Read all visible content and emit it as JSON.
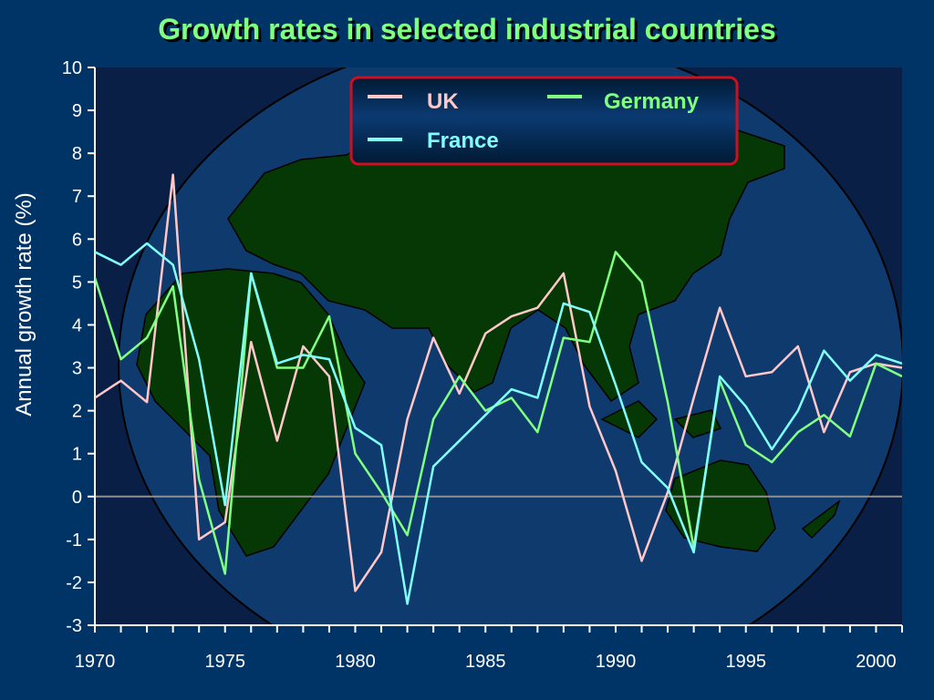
{
  "chart_data": {
    "type": "line",
    "title": "Growth rates in selected industrial countries",
    "xlabel": "",
    "ylabel": "Annual growth rate (%)",
    "xlim": [
      1970,
      2001
    ],
    "ylim": [
      -3,
      10
    ],
    "x_ticks": [
      1970,
      1975,
      1980,
      1985,
      1990,
      1995,
      2000
    ],
    "y_ticks": [
      -3,
      -2,
      -1,
      0,
      1,
      2,
      3,
      4,
      5,
      6,
      7,
      8,
      9,
      10
    ],
    "grid": false,
    "legend_position": "top-center",
    "x": [
      1970,
      1971,
      1972,
      1973,
      1974,
      1975,
      1976,
      1977,
      1978,
      1979,
      1980,
      1981,
      1982,
      1983,
      1984,
      1985,
      1986,
      1987,
      1988,
      1989,
      1990,
      1991,
      1992,
      1993,
      1994,
      1995,
      1996,
      1997,
      1998,
      1999,
      2000,
      2001
    ],
    "series": [
      {
        "name": "UK",
        "color": "#ffc8c8",
        "values": [
          2.3,
          2.7,
          2.2,
          7.5,
          -1.0,
          -0.6,
          3.6,
          1.3,
          3.5,
          2.8,
          -2.2,
          -1.3,
          1.8,
          3.7,
          2.4,
          3.8,
          4.2,
          4.4,
          5.2,
          2.1,
          0.6,
          -1.5,
          0.1,
          2.3,
          4.4,
          2.8,
          2.9,
          3.5,
          1.5,
          2.9,
          3.1,
          3.0
        ]
      },
      {
        "name": "Germany",
        "color": "#80ff80",
        "values": [
          5.1,
          3.2,
          3.7,
          4.9,
          0.4,
          -1.8,
          5.2,
          3.0,
          3.0,
          4.2,
          1.0,
          0.1,
          -0.9,
          1.8,
          2.8,
          2.0,
          2.3,
          1.5,
          3.7,
          3.6,
          5.7,
          5.0,
          2.2,
          -1.2,
          2.7,
          1.2,
          0.8,
          1.5,
          1.9,
          1.4,
          3.1,
          2.8
        ]
      },
      {
        "name": "France",
        "color": "#80ffff",
        "values": [
          5.7,
          5.4,
          5.9,
          5.4,
          3.2,
          -0.2,
          5.2,
          3.1,
          3.3,
          3.2,
          1.6,
          1.2,
          -2.5,
          0.7,
          1.3,
          1.9,
          2.5,
          2.3,
          4.5,
          4.3,
          2.6,
          0.8,
          0.2,
          -1.3,
          2.8,
          2.1,
          1.1,
          2.0,
          3.4,
          2.7,
          3.3,
          3.1
        ]
      }
    ]
  },
  "colors": {
    "background": "#003366",
    "plot_background": "#0a1f45",
    "globe": "#0f3a6e",
    "land": "#063806",
    "title": "#80ff80",
    "legend_border": "#cc1020",
    "zero_line": "#909090"
  }
}
